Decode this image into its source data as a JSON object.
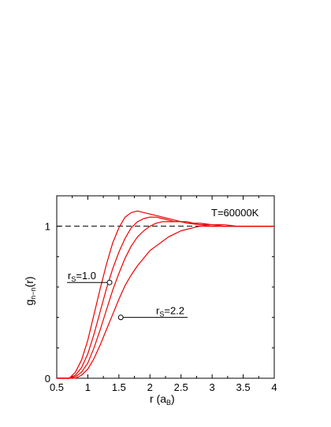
{
  "chart_data": {
    "type": "line",
    "xlabel": {
      "main": "r (a",
      "sub": "B",
      "close": ")"
    },
    "ylabel": {
      "main": "g",
      "sub": "n−n",
      "tail": "(r)"
    },
    "xlim": [
      0.5,
      4
    ],
    "ylim": [
      0,
      1.2
    ],
    "x_ticks": [
      0.5,
      1,
      1.5,
      2,
      2.5,
      3,
      3.5,
      4
    ],
    "x_tick_labels": [
      "0.5",
      "1",
      "1.5",
      "2",
      "2.5",
      "3",
      "3.5",
      "4"
    ],
    "y_ticks": [
      0,
      1
    ],
    "y_tick_labels": [
      "0",
      "1"
    ],
    "reference_line": {
      "y": 1,
      "style": "dashed",
      "color": "#000000"
    },
    "series_color": "#ee0000",
    "series": [
      {
        "x": [
          0.5,
          0.7,
          0.8,
          0.9,
          1.0,
          1.1,
          1.2,
          1.3,
          1.4,
          1.5,
          1.6,
          1.7,
          1.8,
          1.9,
          2.0,
          2.1,
          2.2,
          2.3,
          2.4,
          2.5,
          2.6,
          2.7,
          2.8,
          2.9,
          3.0,
          3.2,
          3.4,
          3.6,
          3.8,
          4.0
        ],
        "values": [
          0,
          0,
          0.04,
          0.12,
          0.25,
          0.42,
          0.59,
          0.75,
          0.89,
          0.99,
          1.06,
          1.09,
          1.1,
          1.09,
          1.08,
          1.07,
          1.06,
          1.05,
          1.04,
          1.03,
          1.02,
          1.015,
          1.01,
          1.005,
          1.0,
          1.0,
          1.0,
          1.0,
          1.0,
          1.0
        ]
      },
      {
        "x": [
          0.5,
          0.7,
          0.8,
          0.9,
          1.0,
          1.1,
          1.2,
          1.3,
          1.4,
          1.5,
          1.6,
          1.7,
          1.8,
          1.9,
          2.0,
          2.1,
          2.2,
          2.3,
          2.4,
          2.5,
          2.6,
          2.7,
          2.8,
          3.0,
          3.2,
          3.4,
          3.6,
          3.8,
          4.0
        ],
        "values": [
          0,
          0,
          0.02,
          0.07,
          0.16,
          0.29,
          0.44,
          0.59,
          0.72,
          0.83,
          0.92,
          0.99,
          1.03,
          1.05,
          1.06,
          1.06,
          1.05,
          1.04,
          1.03,
          1.03,
          1.02,
          1.02,
          1.01,
          1.01,
          1.0,
          1.0,
          1.0,
          1.0,
          1.0
        ]
      },
      {
        "x": [
          0.5,
          0.7,
          0.8,
          0.9,
          1.0,
          1.1,
          1.2,
          1.3,
          1.4,
          1.5,
          1.6,
          1.7,
          1.8,
          1.9,
          2.0,
          2.1,
          2.2,
          2.3,
          2.4,
          2.5,
          2.6,
          2.7,
          2.8,
          3.0,
          3.2,
          3.4,
          3.6,
          3.8,
          4.0
        ],
        "values": [
          0,
          0,
          0.01,
          0.04,
          0.1,
          0.2,
          0.32,
          0.45,
          0.58,
          0.69,
          0.79,
          0.87,
          0.93,
          0.97,
          1.0,
          1.02,
          1.03,
          1.03,
          1.03,
          1.03,
          1.03,
          1.02,
          1.02,
          1.01,
          1.01,
          1.0,
          1.0,
          1.0,
          1.0
        ]
      },
      {
        "x": [
          0.5,
          0.7,
          0.8,
          0.9,
          1.0,
          1.1,
          1.2,
          1.3,
          1.4,
          1.5,
          1.6,
          1.7,
          1.8,
          1.9,
          2.0,
          2.1,
          2.2,
          2.3,
          2.4,
          2.5,
          2.6,
          2.7,
          2.8,
          2.9,
          3.0,
          3.2,
          3.4,
          3.6,
          3.8,
          4.0
        ],
        "values": [
          0,
          0,
          0.0,
          0.02,
          0.06,
          0.13,
          0.22,
          0.32,
          0.42,
          0.52,
          0.61,
          0.68,
          0.74,
          0.79,
          0.84,
          0.87,
          0.9,
          0.93,
          0.95,
          0.97,
          0.98,
          0.99,
          1.0,
          1.0,
          1.0,
          1.0,
          1.0,
          1.0,
          1.0,
          1.0
        ]
      }
    ],
    "annotations": [
      {
        "text_main": "r",
        "text_sub": "S",
        "text_tail": "=1.0",
        "point": [
          1.35,
          0.63
        ]
      },
      {
        "text_main": "r",
        "text_sub": "S",
        "text_tail": "=2.2",
        "point": [
          1.53,
          0.4
        ]
      }
    ],
    "label_T": "T=60000K"
  }
}
